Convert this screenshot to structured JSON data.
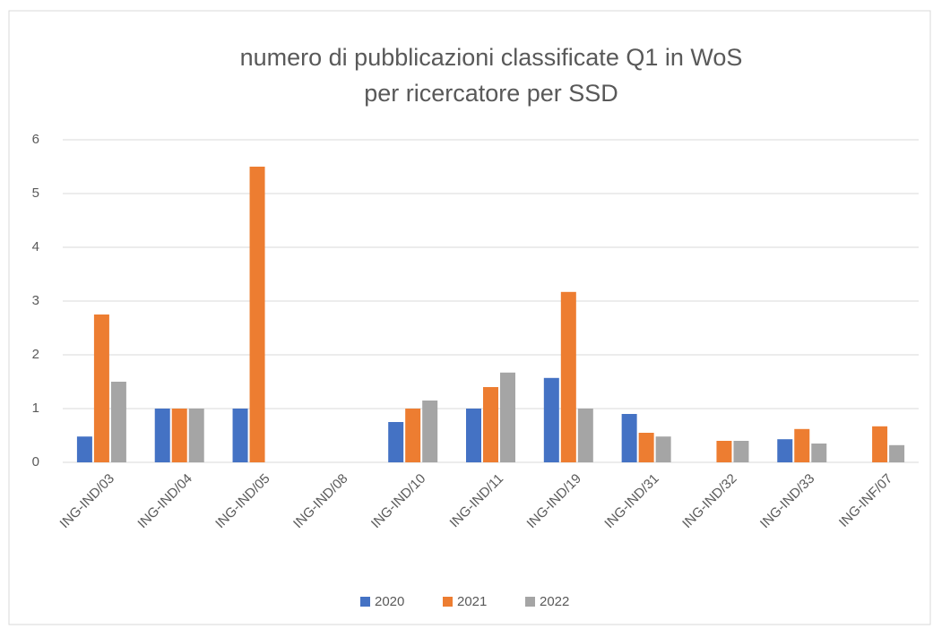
{
  "chart_data": {
    "type": "bar",
    "title": [
      "numero di pubblicazioni classificate Q1 in WoS",
      "per ricercatore per SSD"
    ],
    "categories": [
      "ING-IND/03",
      "ING-IND/04",
      "ING-IND/05",
      "ING-IND/08",
      "ING-IND/10",
      "ING-IND/11",
      "ING-IND/19",
      "ING-IND/31",
      "ING-IND/32",
      "ING-IND/33",
      "ING-INF/07"
    ],
    "series": [
      {
        "name": "2020",
        "color": "#4472c4",
        "values": [
          0.48,
          1.0,
          1.0,
          0,
          0.75,
          1.0,
          1.57,
          0.9,
          0,
          0.43,
          0
        ]
      },
      {
        "name": "2021",
        "color": "#ed7d31",
        "values": [
          2.75,
          1.0,
          5.5,
          0,
          1.0,
          1.4,
          3.17,
          0.55,
          0.4,
          0.62,
          0.67
        ]
      },
      {
        "name": "2022",
        "color": "#a5a5a5",
        "values": [
          1.5,
          1.0,
          0,
          0,
          1.15,
          1.67,
          1.0,
          0.48,
          0.4,
          0.35,
          0.32
        ]
      }
    ],
    "ylim": [
      0,
      6
    ],
    "yticks": [
      0,
      1,
      2,
      3,
      4,
      5,
      6
    ],
    "grid": true,
    "legend": "bottom"
  }
}
